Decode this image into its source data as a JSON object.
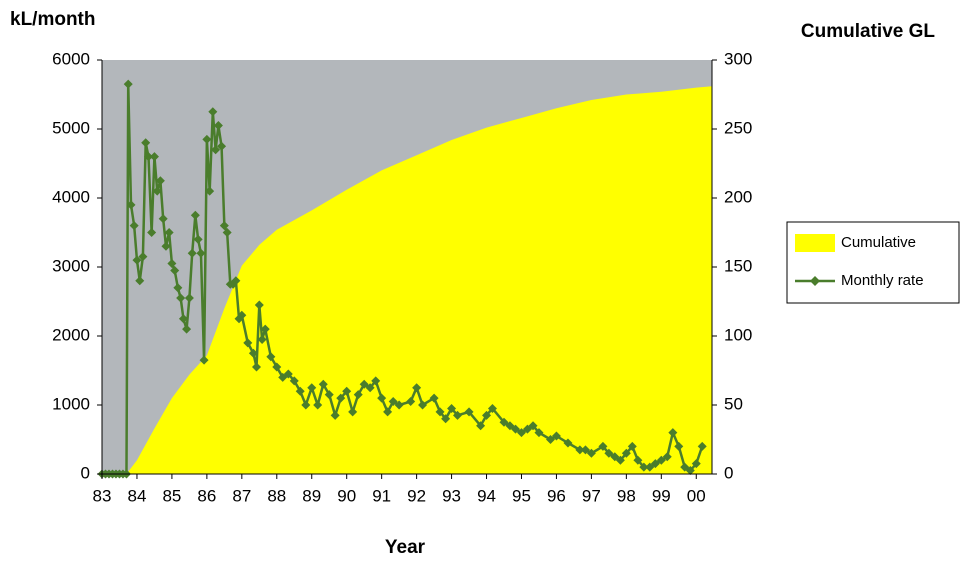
{
  "chart_data": {
    "type": "line",
    "y_label": "kL/month",
    "y2_label": "Cumulative GL",
    "x_label": "Year",
    "xlim": [
      83,
      100.45
    ],
    "xticks": [
      83,
      84,
      85,
      86,
      87,
      88,
      89,
      90,
      91,
      92,
      93,
      94,
      95,
      96,
      97,
      98,
      99,
      {
        "value": 100,
        "label": "00"
      }
    ],
    "ylim": [
      0,
      6000
    ],
    "yticks": [
      0,
      1000,
      2000,
      3000,
      4000,
      5000,
      6000
    ],
    "y2lim": [
      0,
      300
    ],
    "y2ticks": [
      0,
      50,
      100,
      150,
      200,
      250,
      300
    ],
    "background": "#b3b7bb",
    "legend": "right",
    "series": [
      {
        "name": "Cumulative",
        "type": "area",
        "axis": "y2",
        "color": "#ffff00",
        "x": [
          83.0,
          83.7,
          84.0,
          84.5,
          85.0,
          85.5,
          86.0,
          86.5,
          87.0,
          87.5,
          88.0,
          89.0,
          90.0,
          91.0,
          92.0,
          93.0,
          94.0,
          95.0,
          96.0,
          97.0,
          98.0,
          99.0,
          100.0,
          100.45
        ],
        "values": [
          0,
          0,
          10,
          33,
          55,
          72,
          86,
          120,
          151,
          166,
          177,
          191,
          206,
          220,
          231,
          242,
          251,
          258,
          265,
          271,
          275,
          277,
          280,
          281
        ]
      },
      {
        "name": "Monthly rate",
        "type": "line",
        "axis": "y",
        "color": "#4a7d2c",
        "x": [
          83.0,
          83.1,
          83.2,
          83.3,
          83.4,
          83.5,
          83.6,
          83.7,
          83.75,
          83.83,
          83.92,
          84.0,
          84.08,
          84.17,
          84.25,
          84.33,
          84.42,
          84.5,
          84.58,
          84.67,
          84.75,
          84.83,
          84.92,
          85.0,
          85.08,
          85.17,
          85.25,
          85.33,
          85.42,
          85.5,
          85.58,
          85.67,
          85.75,
          85.83,
          85.92,
          86.0,
          86.08,
          86.17,
          86.25,
          86.33,
          86.42,
          86.5,
          86.58,
          86.67,
          86.75,
          86.83,
          86.92,
          87.0,
          87.17,
          87.33,
          87.42,
          87.5,
          87.58,
          87.67,
          87.83,
          88.0,
          88.17,
          88.33,
          88.5,
          88.67,
          88.83,
          89.0,
          89.17,
          89.33,
          89.5,
          89.67,
          89.83,
          90.0,
          90.17,
          90.33,
          90.5,
          90.67,
          90.83,
          91.0,
          91.17,
          91.33,
          91.5,
          91.83,
          92.0,
          92.17,
          92.5,
          92.67,
          92.83,
          93.0,
          93.17,
          93.5,
          93.83,
          94.0,
          94.17,
          94.5,
          94.67,
          94.83,
          95.0,
          95.17,
          95.33,
          95.5,
          95.83,
          96.0,
          96.33,
          96.67,
          96.83,
          97.0,
          97.33,
          97.5,
          97.67,
          97.83,
          98.0,
          98.17,
          98.33,
          98.5,
          98.67,
          98.83,
          99.0,
          99.17,
          99.33,
          99.5,
          99.67,
          99.83,
          100.0,
          100.17
        ],
        "values": [
          0,
          0,
          0,
          0,
          0,
          0,
          0,
          0,
          5650,
          3900,
          3600,
          3100,
          2800,
          3150,
          4800,
          4600,
          3500,
          4600,
          4100,
          4250,
          3700,
          3300,
          3500,
          3050,
          2950,
          2700,
          2550,
          2250,
          2100,
          2550,
          3200,
          3750,
          3400,
          3200,
          1650,
          4850,
          4100,
          5250,
          4700,
          5050,
          4750,
          3600,
          3500,
          2750,
          2750,
          2800,
          2250,
          2300,
          1900,
          1750,
          1550,
          2450,
          1950,
          2100,
          1700,
          1550,
          1400,
          1450,
          1350,
          1200,
          1000,
          1250,
          1000,
          1300,
          1150,
          850,
          1100,
          1200,
          900,
          1150,
          1300,
          1250,
          1350,
          1100,
          900,
          1050,
          1000,
          1050,
          1250,
          1000,
          1100,
          900,
          800,
          950,
          850,
          900,
          700,
          850,
          950,
          750,
          700,
          650,
          600,
          650,
          700,
          600,
          500,
          550,
          450,
          350,
          350,
          300,
          400,
          300,
          250,
          200,
          300,
          400,
          200,
          100,
          100,
          150,
          200,
          250,
          600,
          400,
          100,
          50,
          150,
          400
        ]
      }
    ]
  }
}
